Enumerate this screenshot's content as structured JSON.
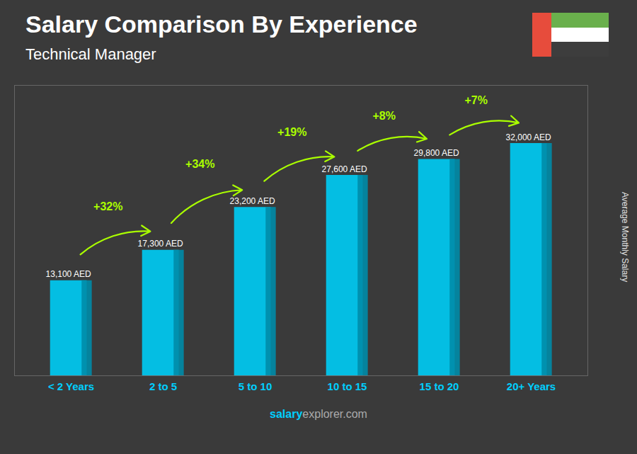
{
  "chart_data": {
    "type": "bar",
    "title": "Salary Comparison By Experience",
    "subtitle": "Technical Manager",
    "ylabel": "Average Monthly Salary",
    "categories": [
      "< 2 Years",
      "2 to 5",
      "5 to 10",
      "10 to 15",
      "15 to 20",
      "20+ Years"
    ],
    "values": [
      13100,
      17300,
      23200,
      27600,
      29800,
      32000
    ],
    "value_labels": [
      "13,100 AED",
      "17,300 AED",
      "23,200 AED",
      "27,600 AED",
      "29,800 AED",
      "32,000 AED"
    ],
    "data_labels": true,
    "annotations": [
      "+32%",
      "+34%",
      "+19%",
      "+8%",
      "+7%"
    ],
    "footer": [
      "salary",
      "explorer.com"
    ],
    "color": "#00c8f0",
    "ylim": [
      0,
      40000
    ],
    "yticks": [],
    "grid": false,
    "tick_labels": "x"
  }
}
